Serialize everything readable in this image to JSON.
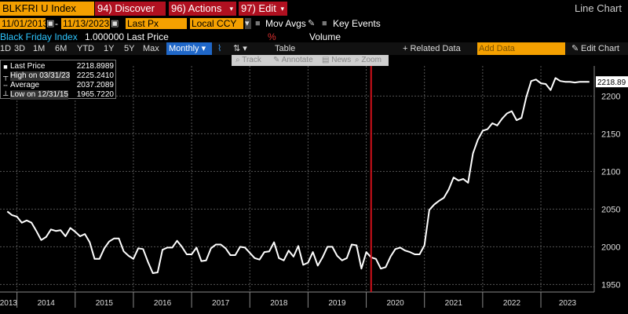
{
  "toolbar": {
    "ticker": "BLKFRI U Index",
    "discover": "94) Discover",
    "actions": "96) Actions",
    "edit": "97) Edit",
    "view": "Line Chart"
  },
  "range": {
    "start": "11/01/2013",
    "end": "11/13/2023",
    "field": "Last Px",
    "currency": "Local CCY",
    "mov_avgs": "Mov Avgs",
    "key_events": "Key Events"
  },
  "series_row": {
    "name": "Black Friday Index",
    "value_text": "1.000000 Last Price",
    "pct": "%",
    "volume": "Volume"
  },
  "periods": [
    "1D",
    "3D",
    "1M",
    "6M",
    "YTD",
    "1Y",
    "5Y",
    "Max"
  ],
  "frequency": "Monthly",
  "table_label": "Table",
  "related_data": "+ Related Data",
  "add_data_placeholder": "Add Data",
  "edit_chart": "Edit Chart",
  "chart_tools": [
    "Track",
    "Annotate",
    "News",
    "Zoom"
  ],
  "legend": [
    {
      "name": "Last Price",
      "value": "2218.8989"
    },
    {
      "name": "High on 03/31/23",
      "value": "2225.2410"
    },
    {
      "name": "Average",
      "value": "2037.2089"
    },
    {
      "name": "Low on 12/31/15",
      "value": "1965.7220"
    }
  ],
  "last_value_label": "2218.89",
  "colors": {
    "orange": "#f4a000",
    "accent_red": "#d0101a",
    "blue_select": "#1f67c8",
    "cyan_text": "#2ec6ff",
    "line": "#ffffff",
    "grid": "#555555"
  },
  "chart_data": {
    "type": "line",
    "title": "",
    "xlabel": "",
    "ylabel": "",
    "frequency": "monthly",
    "x_ticks": [
      "2013",
      "2014",
      "2015",
      "2016",
      "2017",
      "2018",
      "2019",
      "2020",
      "2021",
      "2022",
      "2023"
    ],
    "y_ticks": [
      1950,
      2000,
      2050,
      2100,
      2150,
      2200
    ],
    "ylim": [
      1940,
      2240
    ],
    "xlim": [
      "2013-11",
      "2023-11"
    ],
    "vertical_marker": "2020-02",
    "grid": true,
    "legend_placement": "top-left",
    "series": [
      {
        "name": "Last Price",
        "x": [
          "2013-11",
          "2013-12",
          "2014-01",
          "2014-02",
          "2014-03",
          "2014-04",
          "2014-05",
          "2014-06",
          "2014-07",
          "2014-08",
          "2014-09",
          "2014-10",
          "2014-11",
          "2014-12",
          "2015-01",
          "2015-02",
          "2015-03",
          "2015-04",
          "2015-05",
          "2015-06",
          "2015-07",
          "2015-08",
          "2015-09",
          "2015-10",
          "2015-11",
          "2015-12",
          "2016-01",
          "2016-02",
          "2016-03",
          "2016-04",
          "2016-05",
          "2016-06",
          "2016-07",
          "2016-08",
          "2016-09",
          "2016-10",
          "2016-11",
          "2016-12",
          "2017-01",
          "2017-02",
          "2017-03",
          "2017-04",
          "2017-05",
          "2017-06",
          "2017-07",
          "2017-08",
          "2017-09",
          "2017-10",
          "2017-11",
          "2017-12",
          "2018-01",
          "2018-02",
          "2018-03",
          "2018-04",
          "2018-05",
          "2018-06",
          "2018-07",
          "2018-08",
          "2018-09",
          "2018-10",
          "2018-11",
          "2018-12",
          "2019-01",
          "2019-02",
          "2019-03",
          "2019-04",
          "2019-05",
          "2019-06",
          "2019-07",
          "2019-08",
          "2019-09",
          "2019-10",
          "2019-11",
          "2019-12",
          "2020-01",
          "2020-02",
          "2020-03",
          "2020-04",
          "2020-05",
          "2020-06",
          "2020-07",
          "2020-08",
          "2020-09",
          "2020-10",
          "2020-11",
          "2020-12",
          "2021-01",
          "2021-02",
          "2021-03",
          "2021-04",
          "2021-05",
          "2021-06",
          "2021-07",
          "2021-08",
          "2021-09",
          "2021-10",
          "2021-11",
          "2021-12",
          "2022-01",
          "2022-02",
          "2022-03",
          "2022-04",
          "2022-05",
          "2022-06",
          "2022-07",
          "2022-08",
          "2022-09",
          "2022-10",
          "2022-11",
          "2022-12",
          "2023-01",
          "2023-02",
          "2023-03",
          "2023-04",
          "2023-05",
          "2023-06",
          "2023-07",
          "2023-08",
          "2023-09",
          "2023-10",
          "2023-11"
        ],
        "y": [
          2047,
          2042,
          2040,
          2032,
          2035,
          2032,
          2021,
          2009,
          2013,
          2023,
          2021,
          2022,
          2014,
          2025,
          2020,
          2014,
          2017,
          2006,
          1984,
          1984,
          1998,
          2007,
          2011,
          2011,
          1994,
          1988,
          1984,
          1998,
          1997,
          1980,
          1965,
          1966,
          1996,
          1999,
          1999,
          2008,
          2000,
          1990,
          1990,
          1999,
          1981,
          1982,
          1998,
          2003,
          2003,
          1998,
          1989,
          1989,
          2000,
          1999,
          1992,
          1985,
          1983,
          1993,
          1994,
          2006,
          1985,
          1982,
          1995,
          1987,
          2001,
          1976,
          1979,
          1993,
          1975,
          1986,
          2000,
          2000,
          1988,
          1982,
          1985,
          2003,
          2002,
          1971,
          1993,
          1986,
          1984,
          1971,
          1973,
          1987,
          1997,
          1999,
          1995,
          1993,
          1990,
          1990,
          2002,
          2049,
          2056,
          2061,
          2065,
          2076,
          2092,
          2088,
          2090,
          2085,
          2124,
          2142,
          2154,
          2156,
          2164,
          2161,
          2170,
          2177,
          2180,
          2168,
          2171,
          2199,
          2220,
          2222,
          2217,
          2216,
          2208,
          2224,
          2220,
          2219,
          2219,
          2218,
          2219,
          2219,
          2219
        ]
      }
    ]
  }
}
